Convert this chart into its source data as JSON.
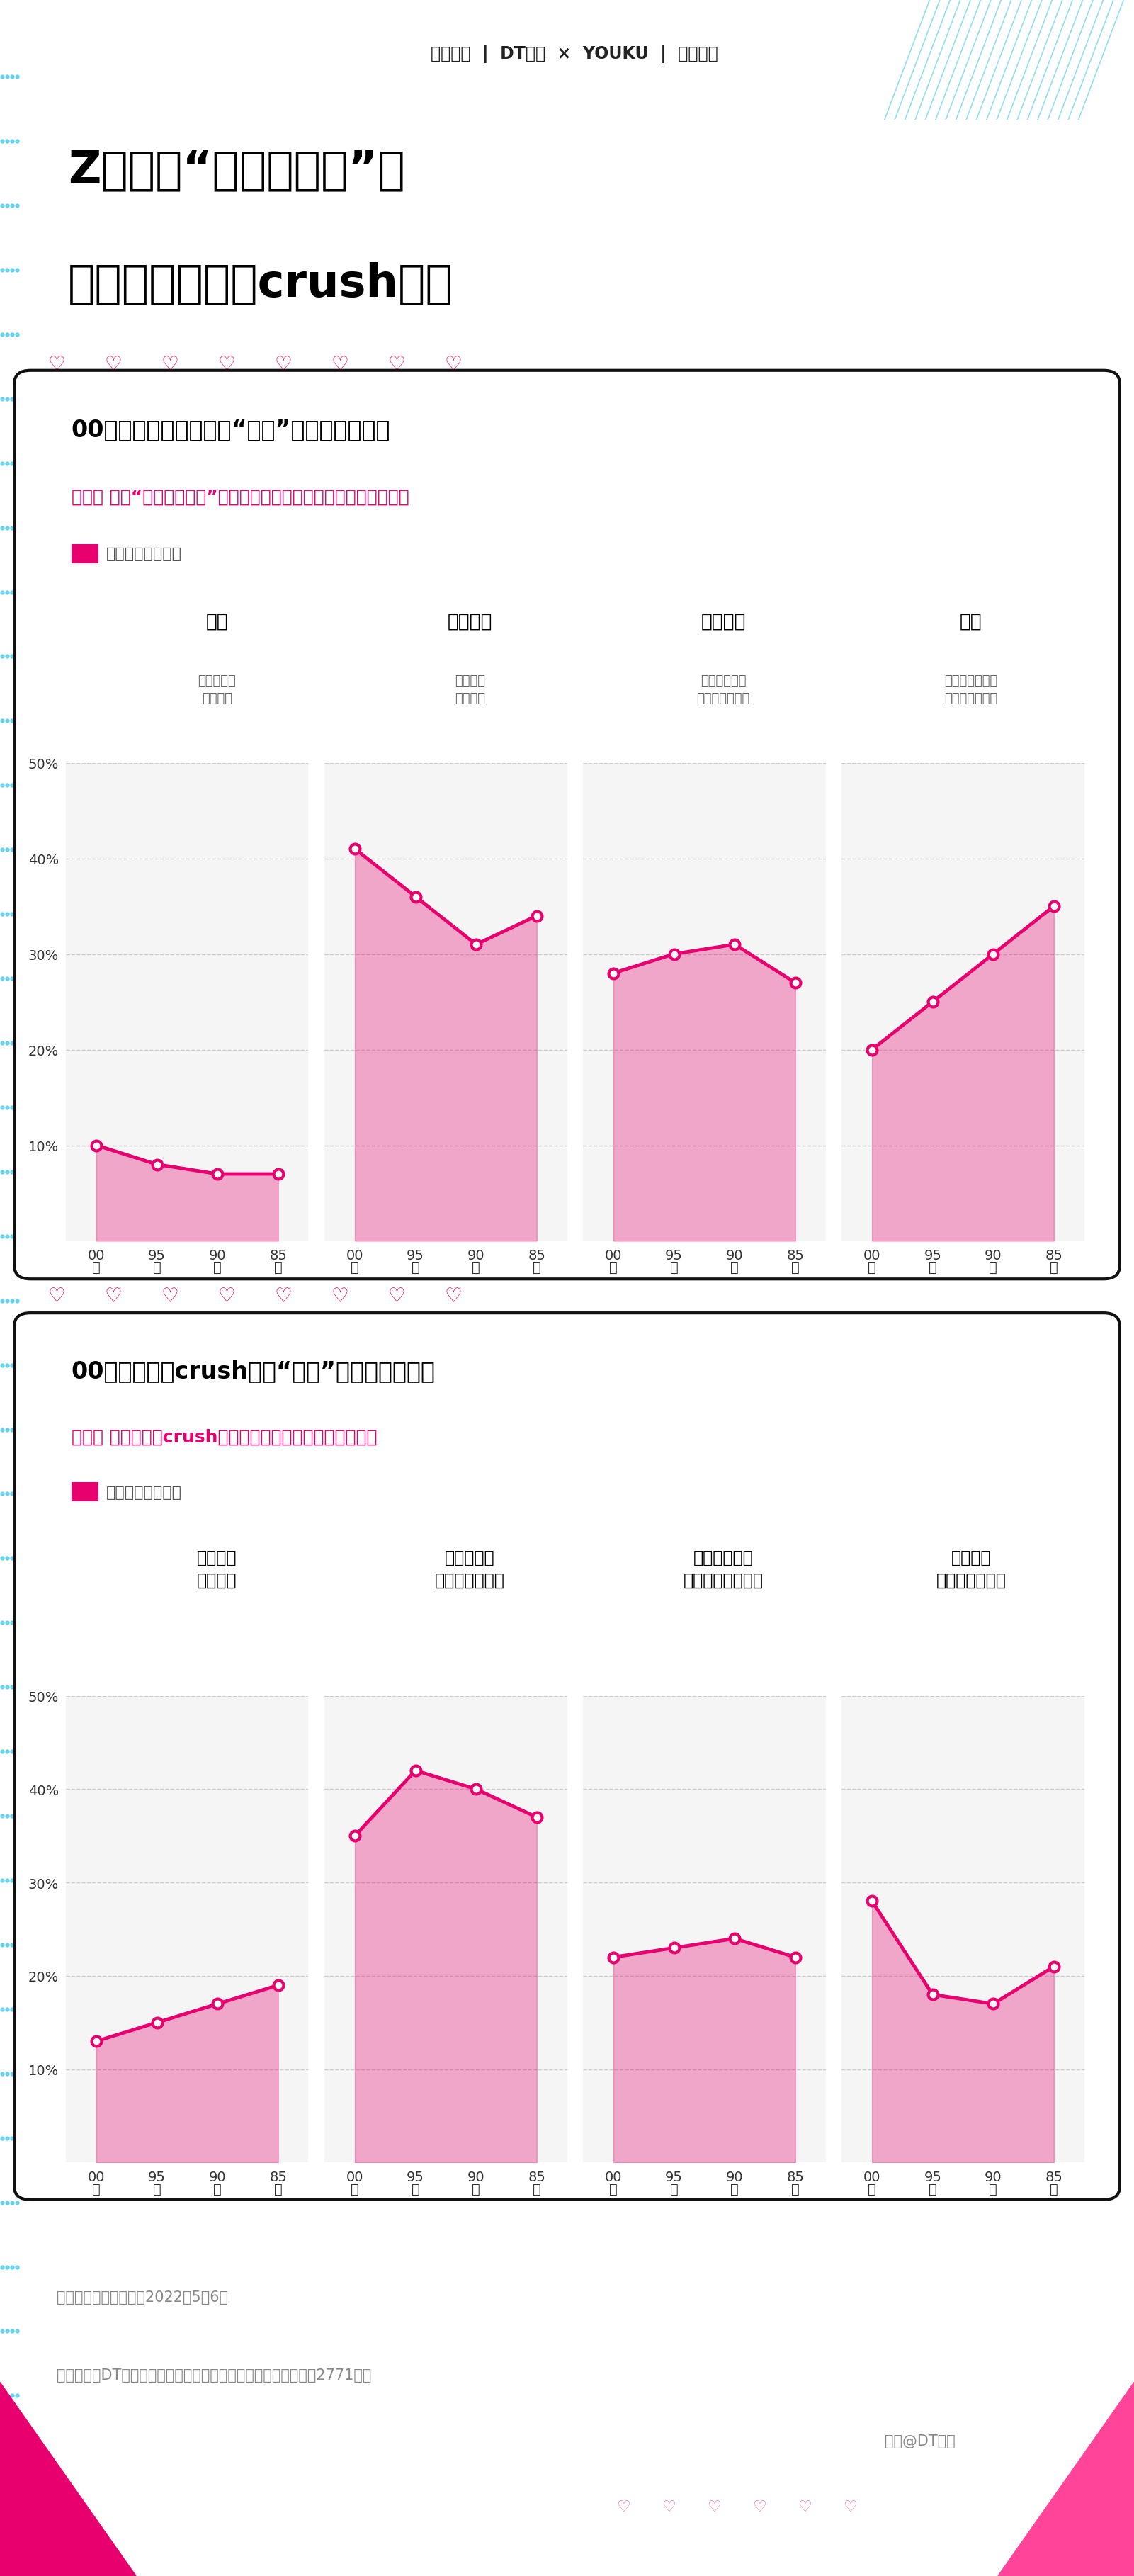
{
  "bg_color": "#ffffff",
  "header_bg": "#ffffff",
  "card_bg": "#ffffff",
  "dot_color": "#4dc8e8",
  "pink": "#e8006e",
  "pink_fill": "#f7b8d4",
  "chart_bg": "#f5f5f5",
  "title_line1": "Z世代的“爱情社恐症”：",
  "title_line2": "对前任社牛，对crush社恐",
  "section1_title": "00后更倾向在前任面前“蹭迪”，和前任做朋友",
  "section1_question": "问题： 对于“和前任做朋友”这件事，你的态度更倾向于以下哪一种？",
  "section2_title": "00后更倾向在crush面前“装死”，只心动不行动",
  "section2_question": "问题： 面对自己的crush对象，你更倾向于以下哪种做法？",
  "legend_text": "选择各选项的比例",
  "x_labels": [
    "00\n后",
    "95\n后",
    "90\n后",
    "85\n后"
  ],
  "s1_cats": [
    "赞成",
    "可以接受",
    "不太赞成",
    "反对"
  ],
  "s1_subs": [
    "没必要失去\n一个朋友",
    "偶尔联系\n也很正常",
    "可能会对下一\n段爱情造成困扰",
    "既然分手了就应\n该尽量断绝联系"
  ],
  "s1_data": [
    [
      10,
      8,
      7,
      7
    ],
    [
      41,
      36,
      31,
      34
    ],
    [
      28,
      30,
      31,
      27
    ],
    [
      20,
      25,
      30,
      35
    ]
  ],
  "s2_cats": [
    "相信感觉\n主动出击",
    "多观察两天\n找机会试探对方",
    "等对方向自己\n示好，再慢慢接近",
    "按兵不动\n仅仅停留在心动"
  ],
  "s2_data": [
    [
      13,
      15,
      17,
      19
    ],
    [
      35,
      42,
      40,
      37
    ],
    [
      22,
      23,
      24,
      22
    ],
    [
      28,
      18,
      17,
      21
    ]
  ],
  "yticks": [
    0,
    10,
    20,
    30,
    40,
    50
  ],
  "ylim": [
    0,
    50
  ],
  "footer_note": "注：数据统计时间截至2022年5朎6日",
  "footer_src": "数据来源：DT财经与优酷有位青年事务所联合调研（有效样本为2771份）",
  "footer_right": "头条@DT财经"
}
